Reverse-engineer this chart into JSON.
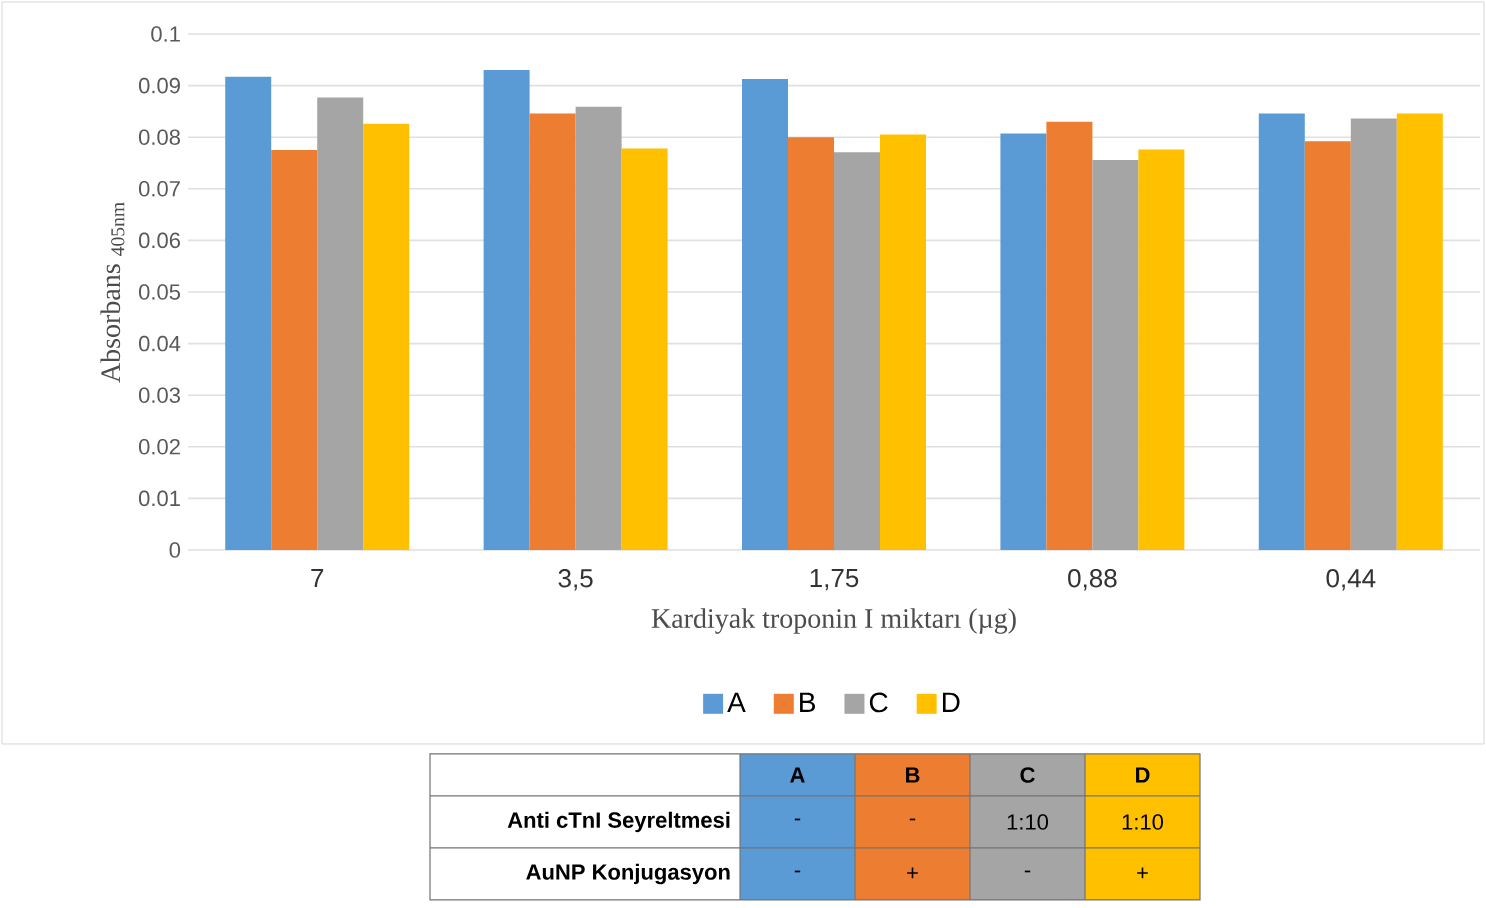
{
  "chart_data": {
    "type": "bar",
    "xlabel": "Kardiyak troponin I miktarı (µg)",
    "ylabel": "Absorbans $_{405nm}$",
    "categories": [
      "7",
      "3,5",
      "1,75",
      "0,88",
      "0,44"
    ],
    "series": [
      {
        "name": "A",
        "color": "#5b9bd5",
        "values": [
          0.0917,
          0.093,
          0.0913,
          0.0807,
          0.0846
        ]
      },
      {
        "name": "B",
        "color": "#ed7d31",
        "values": [
          0.0775,
          0.0846,
          0.08,
          0.083,
          0.0792
        ]
      },
      {
        "name": "C",
        "color": "#a5a5a5",
        "values": [
          0.0877,
          0.0859,
          0.0771,
          0.0756,
          0.0836
        ]
      },
      {
        "name": "D",
        "color": "#ffc000",
        "values": [
          0.0826,
          0.0778,
          0.0805,
          0.0776,
          0.0846
        ]
      }
    ],
    "ylim": [
      0,
      0.1
    ],
    "yticks": [
      0,
      0.01,
      0.02,
      0.03,
      0.04,
      0.05,
      0.06,
      0.07,
      0.08,
      0.09,
      0.1
    ],
    "grid": "y",
    "legend": "bottom",
    "annotations": [
      "A",
      "B",
      "C",
      "D",
      "Anti cTnI Seyreltmesi",
      "-",
      "-",
      "1:10",
      "1:10",
      "AuNP Konjugasyon",
      "-",
      "+",
      "-",
      "+"
    ]
  }
}
